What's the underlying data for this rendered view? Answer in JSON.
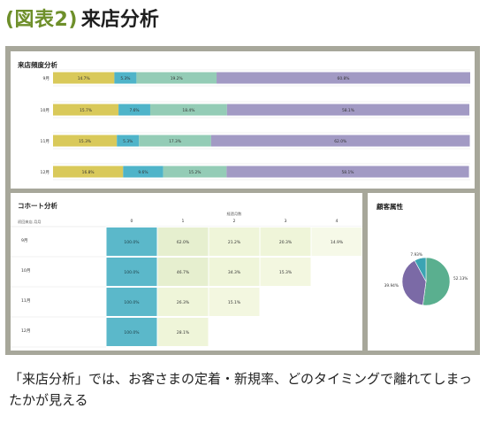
{
  "header": {
    "badge": "(図表2)",
    "title": "来店分析"
  },
  "caption": "「来店分析」では、お客さまの定着・新規率、どのタイミングで離れてしまったかが見える",
  "colors": {
    "bar_segments": [
      "#d9c95a",
      "#4fb4c9",
      "#94ccb6",
      "#a29ac4"
    ],
    "cohort_first": "#5bb8ca",
    "pie": [
      "#5aaf8f",
      "#7b6aa6",
      "#3ba4b3"
    ],
    "frame": "#a7a79a"
  },
  "panels": {
    "frequency": {
      "title": "来店頻度分析"
    },
    "cohort": {
      "title": "コホート分析",
      "col_group_label": "経過月数",
      "row_header_label": "初回来店 月月"
    },
    "attributes": {
      "title": "顧客属性"
    }
  },
  "chart_data": [
    {
      "type": "bar",
      "stacked": true,
      "orientation": "horizontal",
      "title": "来店頻度分析",
      "categories": [
        "9月",
        "10月",
        "11月",
        "12月"
      ],
      "series": [
        {
          "values": [
            14.7,
            15.7,
            15.3,
            16.8
          ]
        },
        {
          "values": [
            5.3,
            7.6,
            5.3,
            9.6
          ]
        },
        {
          "values": [
            19.2,
            18.4,
            17.3,
            15.2
          ]
        },
        {
          "values": [
            60.8,
            58.1,
            62.0,
            58.1
          ]
        }
      ],
      "value_labels": [
        [
          "14.7%",
          "5.3%",
          "19.2%",
          "60.8%"
        ],
        [
          "15.7%",
          "7.6%",
          "18.4%",
          "58.1%"
        ],
        [
          "15.3%",
          "5.3%",
          "17.3%",
          "62.0%"
        ],
        [
          "16.8%",
          "9.6%",
          "15.2%",
          "58.1%"
        ]
      ],
      "xlim": [
        0,
        100
      ]
    },
    {
      "type": "table",
      "title": "コホート分析",
      "columns": [
        "0",
        "1",
        "2",
        "3",
        "4"
      ],
      "rows": [
        {
          "label": "9月",
          "cells": [
            "100.0%",
            "62.0%",
            "21.2%",
            "20.3%",
            "14.9%"
          ]
        },
        {
          "label": "10月",
          "cells": [
            "100.0%",
            "46.7%",
            "34.3%",
            "15.3%"
          ]
        },
        {
          "label": "11月",
          "cells": [
            "100.0%",
            "26.3%",
            "15.1%"
          ]
        },
        {
          "label": "12月",
          "cells": [
            "100.0%",
            "28.1%"
          ]
        }
      ]
    },
    {
      "type": "pie",
      "title": "顧客属性",
      "values": [
        52.13,
        39.94,
        7.93
      ],
      "labels": [
        "52.13%",
        "39.94%",
        "7.93%"
      ]
    }
  ]
}
